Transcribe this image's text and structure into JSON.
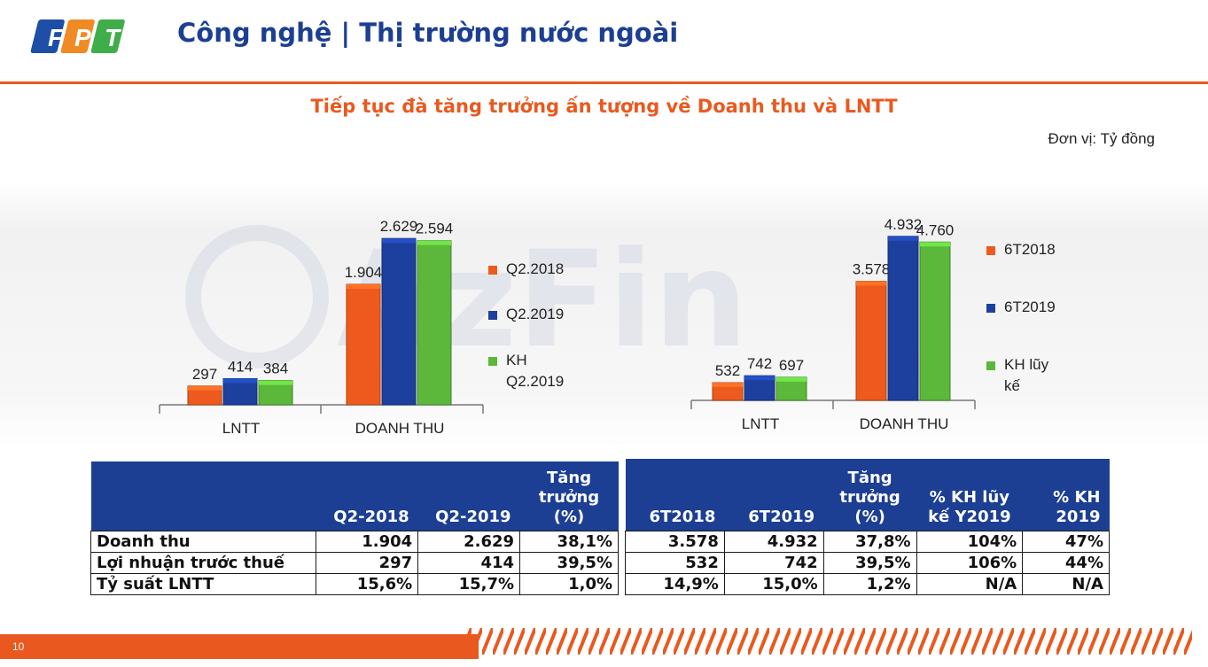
{
  "header": {
    "logo_text": "FPT",
    "title": "Công nghệ | Thị trường nước ngoài"
  },
  "subtitle": "Tiếp tục đà tăng trưởng ấn tượng về Doanh thu và LNTT",
  "unit": "Đơn vị: Tỷ đồng",
  "watermark_text": "AzFin",
  "colors": {
    "brand_blue": "#1c3f94",
    "accent_orange": "#e9591f",
    "series_orange": "#ee5a1d",
    "series_blue": "#1d3f9e",
    "series_green": "#5bb83a"
  },
  "chart_data": [
    {
      "type": "bar",
      "categories": [
        "LNTT",
        "DOANH THU"
      ],
      "series": [
        {
          "name": "Q2.2018",
          "values": [
            297,
            1904
          ],
          "labels": [
            "297",
            "1.904"
          ],
          "color": "#ee5a1d"
        },
        {
          "name": "Q2.2019",
          "values": [
            414,
            2629
          ],
          "labels": [
            "414",
            "2.629"
          ],
          "color": "#1d3f9e"
        },
        {
          "name": "KH Q2.2019",
          "values": [
            384,
            2594
          ],
          "labels": [
            "384",
            "2.594"
          ],
          "color": "#5bb83a"
        }
      ],
      "legend_labels": [
        "Q2.2018",
        "Q2.2019",
        "KH\nQ2.2019"
      ],
      "legend_position": "right",
      "grid": false,
      "ylim": [
        0,
        2800
      ]
    },
    {
      "type": "bar",
      "categories": [
        "LNTT",
        "DOANH THU"
      ],
      "series": [
        {
          "name": "6T2018",
          "values": [
            532,
            3578
          ],
          "labels": [
            "532",
            "3.578"
          ],
          "color": "#ee5a1d"
        },
        {
          "name": "6T2019",
          "values": [
            742,
            4932
          ],
          "labels": [
            "742",
            "4.932"
          ],
          "color": "#1d3f9e"
        },
        {
          "name": "KH lũy kế",
          "values": [
            697,
            4760
          ],
          "labels": [
            "697",
            "4.760"
          ],
          "color": "#5bb83a"
        }
      ],
      "legend_labels": [
        "6T2018",
        "6T2019",
        "KH lũy\nkế"
      ],
      "legend_position": "right",
      "grid": false,
      "ylim": [
        0,
        5300
      ]
    }
  ],
  "table_left": {
    "headers": [
      "",
      "Q2-2018",
      "Q2-2019",
      "Tăng trưởng (%)"
    ],
    "rows": [
      [
        "Doanh thu",
        "1.904",
        "2.629",
        "38,1%"
      ],
      [
        "Lợi nhuận trước thuế",
        "297",
        "414",
        "39,5%"
      ],
      [
        "Tỷ suất LNTT",
        "15,6%",
        "15,7%",
        "1,0%"
      ]
    ]
  },
  "table_right": {
    "headers": [
      "6T2018",
      "6T2019",
      "Tăng trưởng (%)",
      "% KH lũy kế Y2019",
      "% KH 2019"
    ],
    "rows": [
      [
        "3.578",
        "4.932",
        "37,8%",
        "104%",
        "47%"
      ],
      [
        "532",
        "742",
        "39,5%",
        "106%",
        "44%"
      ],
      [
        "14,9%",
        "15,0%",
        "1,2%",
        "N/A",
        "N/A"
      ]
    ]
  },
  "footer": {
    "page_number": "10"
  }
}
